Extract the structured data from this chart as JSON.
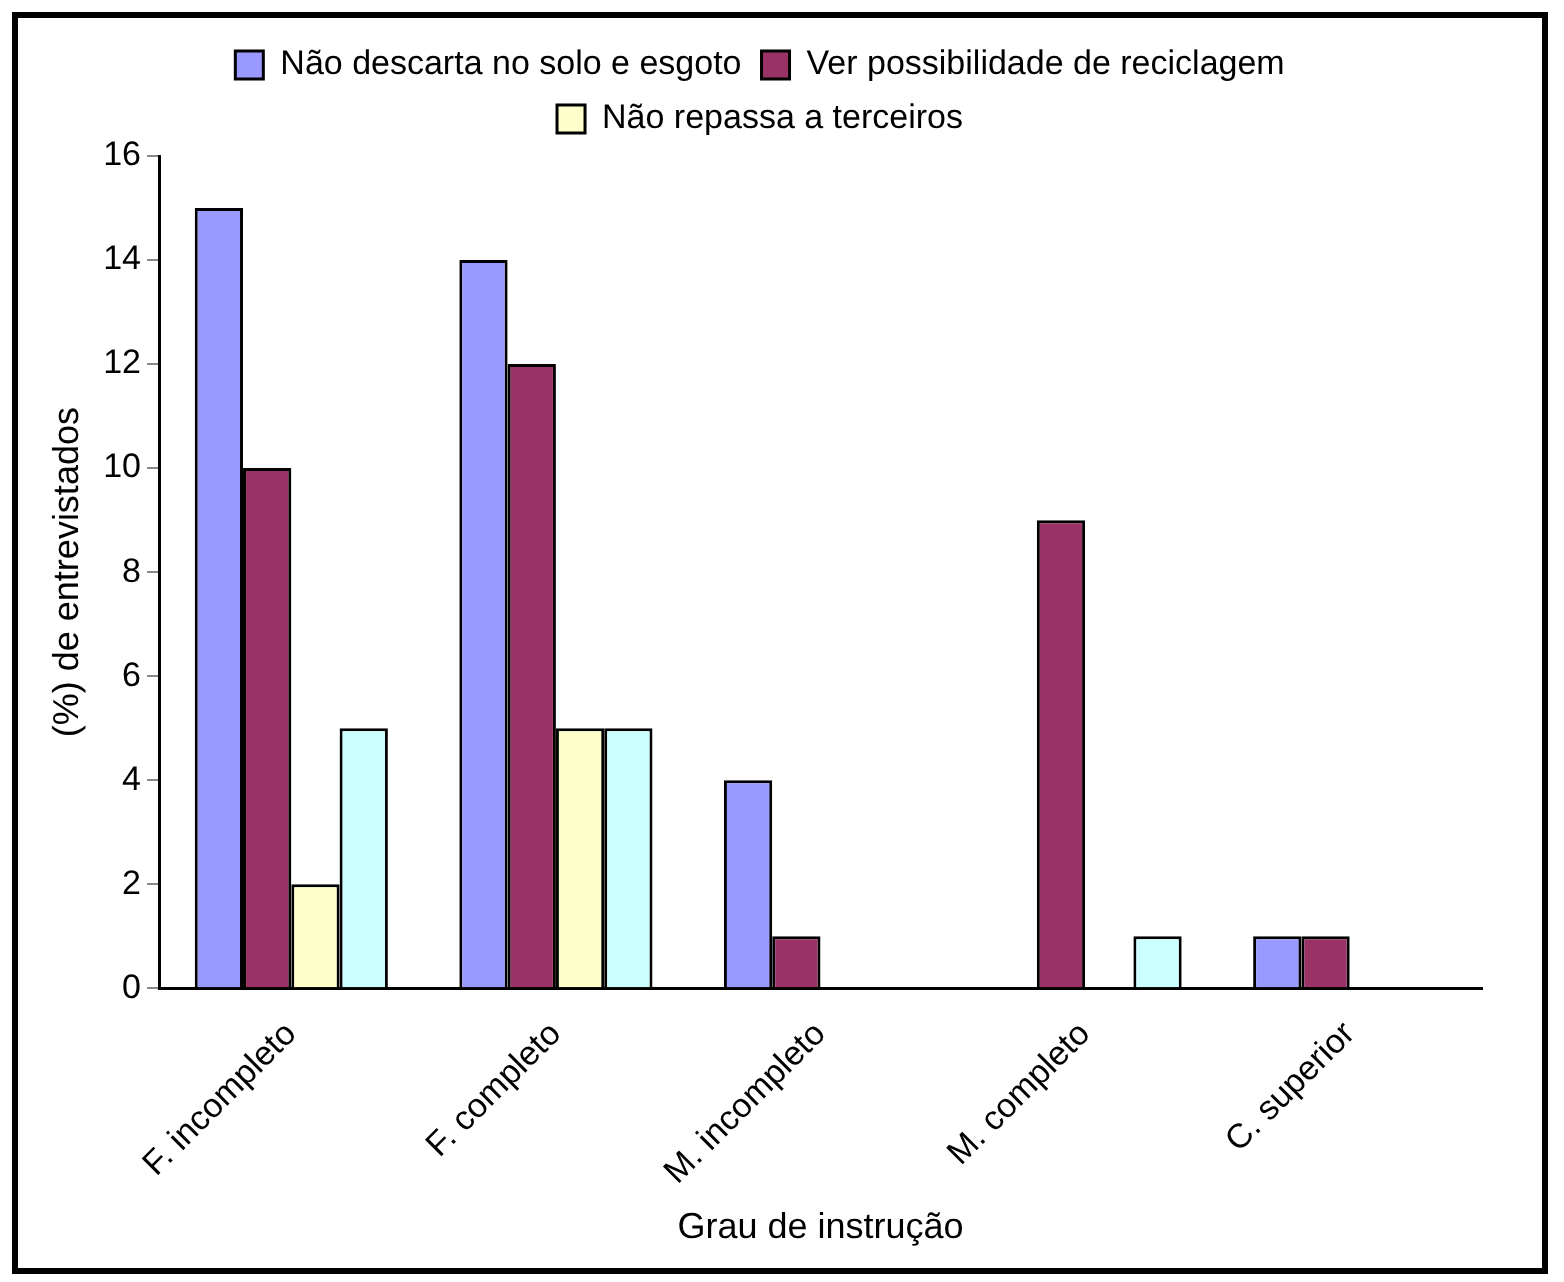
{
  "chart_data": {
    "type": "bar",
    "xlabel": "Grau de instrução",
    "ylabel": "(%) de entrevistados",
    "categories": [
      "F. incompleto",
      "F. completo",
      "M. incompleto",
      "M. completo",
      "C. superior"
    ],
    "series": [
      {
        "name": "Não descarta no solo e esgoto",
        "color": "#9999ff",
        "values": [
          15,
          14,
          4,
          null,
          1
        ]
      },
      {
        "name": "Ver possibilidade de reciclagem",
        "color": "#993366",
        "values": [
          10,
          12,
          1,
          9,
          1
        ]
      },
      {
        "name": "Não repassa a terceiros",
        "color": "#ffffcc",
        "values": [
          2,
          5,
          0,
          0,
          0
        ]
      },
      {
        "color": "#ccffff",
        "values": [
          5,
          5,
          0,
          1,
          0
        ]
      }
    ],
    "ylim": [
      0,
      16
    ],
    "yticks": [
      0,
      2,
      4,
      6,
      8,
      10,
      12,
      14,
      16
    ],
    "grid": false,
    "legend": "top"
  }
}
